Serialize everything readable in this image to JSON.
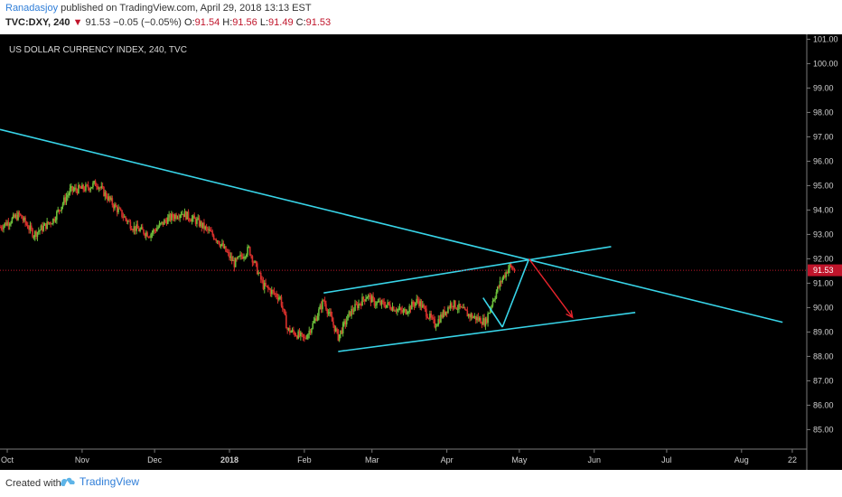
{
  "header": {
    "author": "Ranadasjoy",
    "published": "published on TradingView.com, April 29, 2018 13:13 EST",
    "symbol": "TVC:DXY, 240",
    "last": "91.53",
    "change": "−0.05 (−0.05%)",
    "open_label": "O:",
    "open": "91.54",
    "high_label": "H:",
    "high": "91.56",
    "low_label": "L:",
    "low": "91.49",
    "close_label": "C:",
    "close": "91.53"
  },
  "footer": {
    "created": "Created with",
    "brand": "TradingView",
    "brand_icon": "tradingview-cloud-icon"
  },
  "colors": {
    "background": "#000000",
    "trendline": "#38d4e8",
    "arrow": "#e8242c",
    "up": "#6dbf3a",
    "down": "#d9302c",
    "price_line": "#c0152b"
  },
  "chart_data": {
    "type": "candlestick",
    "title": "US DOLLAR CURRENCY INDEX, 240, TVC",
    "last_price": 91.53,
    "last_price_label": "91.53",
    "ylim": [
      84.2,
      101.2
    ],
    "y_ticks": [
      "85.00",
      "86.00",
      "87.00",
      "88.00",
      "89.00",
      "90.00",
      "91.00",
      "92.00",
      "93.00",
      "94.00",
      "95.00",
      "96.00",
      "97.00",
      "98.00",
      "99.00",
      "100.00",
      "101.00"
    ],
    "x_ticks": [
      "Oct",
      "Nov",
      "Dec",
      "2018",
      "Feb",
      "Mar",
      "Apr",
      "May",
      "Jun",
      "Jul",
      "Aug",
      "22"
    ],
    "x_range": [
      "2017-09-28",
      "2018-08-28"
    ],
    "price_path": [
      [
        "2017-09-28",
        93.3
      ],
      [
        "2017-10-06",
        93.8
      ],
      [
        "2017-10-12",
        93.0
      ],
      [
        "2017-10-20",
        93.6
      ],
      [
        "2017-10-27",
        94.8
      ],
      [
        "2017-11-03",
        94.9
      ],
      [
        "2017-11-07",
        95.1
      ],
      [
        "2017-11-14",
        94.2
      ],
      [
        "2017-11-22",
        93.3
      ],
      [
        "2017-11-29",
        93.0
      ],
      [
        "2017-12-06",
        93.6
      ],
      [
        "2017-12-12",
        93.9
      ],
      [
        "2017-12-19",
        93.5
      ],
      [
        "2017-12-27",
        92.8
      ],
      [
        "2018-01-03",
        91.8
      ],
      [
        "2018-01-09",
        92.4
      ],
      [
        "2018-01-11",
        91.9
      ],
      [
        "2018-01-15",
        90.9
      ],
      [
        "2018-01-22",
        90.4
      ],
      [
        "2018-01-25",
        89.1
      ],
      [
        "2018-01-29",
        88.9
      ],
      [
        "2018-02-01",
        88.7
      ],
      [
        "2018-02-05",
        89.4
      ],
      [
        "2018-02-09",
        90.3
      ],
      [
        "2018-02-15",
        88.8
      ],
      [
        "2018-02-20",
        89.8
      ],
      [
        "2018-02-27",
        90.5
      ],
      [
        "2018-03-02",
        90.2
      ],
      [
        "2018-03-08",
        90.1
      ],
      [
        "2018-03-14",
        89.8
      ],
      [
        "2018-03-20",
        90.3
      ],
      [
        "2018-03-27",
        89.3
      ],
      [
        "2018-04-03",
        90.2
      ],
      [
        "2018-04-10",
        89.7
      ],
      [
        "2018-04-17",
        89.4
      ],
      [
        "2018-04-20",
        90.3
      ],
      [
        "2018-04-24",
        91.2
      ],
      [
        "2018-04-27",
        91.7
      ],
      [
        "2018-04-29",
        91.53
      ]
    ],
    "trendlines": [
      {
        "name": "long-term-downtrend",
        "points": [
          [
            "2017-09-28",
            97.3
          ],
          [
            "2018-08-18",
            89.4
          ]
        ]
      },
      {
        "name": "channel-upper",
        "points": [
          [
            "2018-02-09",
            90.6
          ],
          [
            "2018-06-08",
            92.5
          ]
        ]
      },
      {
        "name": "channel-lower",
        "points": [
          [
            "2018-02-15",
            88.2
          ],
          [
            "2018-06-18",
            89.8
          ]
        ]
      },
      {
        "name": "flag-left",
        "points": [
          [
            "2018-04-16",
            90.4
          ],
          [
            "2018-04-24",
            89.2
          ]
        ]
      },
      {
        "name": "flag-right",
        "points": [
          [
            "2018-04-24",
            89.2
          ],
          [
            "2018-05-05",
            92.0
          ]
        ]
      }
    ],
    "arrow": {
      "from": [
        "2018-05-05",
        92.0
      ],
      "to": [
        "2018-05-23",
        89.6
      ]
    }
  }
}
